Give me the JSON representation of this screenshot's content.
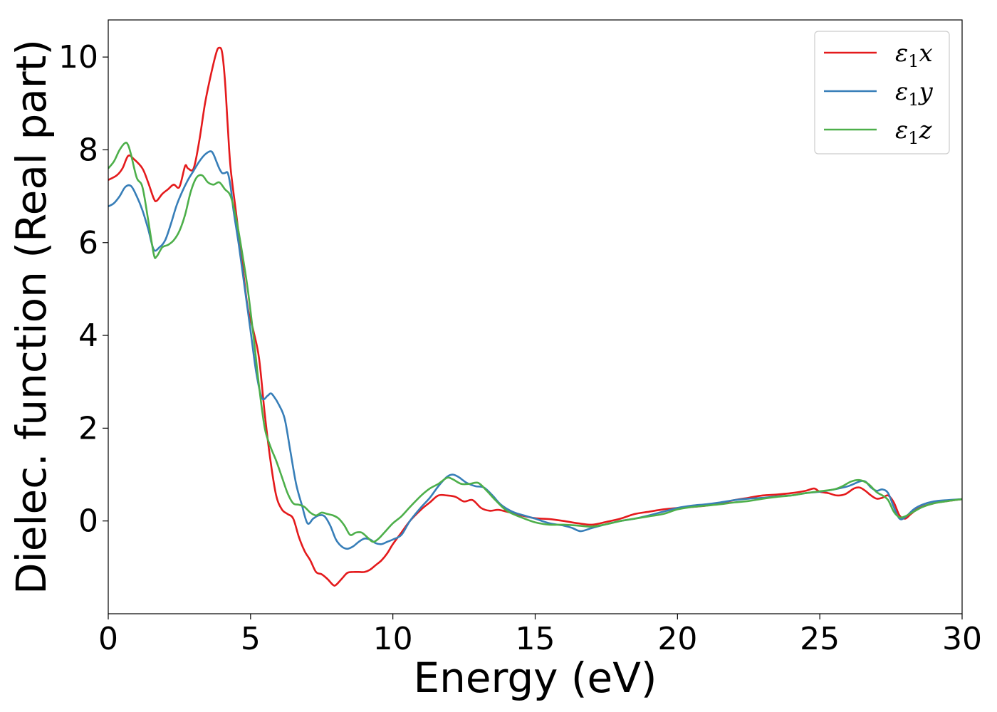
{
  "chart_data": {
    "type": "line",
    "xlabel": "Energy (eV)",
    "ylabel": "Dielec. function (Real part)",
    "xlim": [
      0,
      30
    ],
    "ylim": [
      -2,
      10.8
    ],
    "xticks": [
      0,
      5,
      10,
      15,
      20,
      25,
      30
    ],
    "yticks": [
      0,
      2,
      4,
      6,
      8,
      10
    ],
    "grid": false,
    "legend_position": "top-right",
    "series": [
      {
        "name": "ε₁x",
        "label_base": "ε",
        "label_sub": "1",
        "label_var": "x",
        "color": "#e41a1c",
        "x": [
          0,
          0.3,
          0.5,
          0.7,
          0.9,
          1.2,
          1.4,
          1.6,
          1.7,
          1.9,
          2.1,
          2.3,
          2.5,
          2.7,
          2.8,
          3.0,
          3.2,
          3.4,
          3.6,
          3.8,
          3.9,
          4.0,
          4.1,
          4.2,
          4.3,
          4.5,
          4.7,
          4.9,
          5.1,
          5.3,
          5.5,
          5.7,
          5.9,
          6.1,
          6.3,
          6.5,
          6.7,
          6.9,
          7.1,
          7.3,
          7.5,
          7.7,
          7.9,
          8.0,
          8.2,
          8.4,
          8.6,
          8.8,
          9.0,
          9.2,
          9.4,
          9.6,
          9.8,
          10.0,
          10.3,
          10.6,
          11.0,
          11.3,
          11.6,
          11.9,
          12.2,
          12.5,
          12.8,
          13.1,
          13.4,
          13.7,
          14.0,
          14.5,
          15.0,
          15.5,
          16.0,
          16.5,
          17.0,
          17.5,
          18.0,
          18.5,
          19.0,
          19.5,
          20.0,
          20.5,
          21.0,
          21.5,
          22.0,
          22.5,
          23.0,
          23.5,
          24.0,
          24.5,
          24.8,
          25.0,
          25.3,
          25.6,
          25.9,
          26.2,
          26.4,
          26.6,
          26.8,
          27.0,
          27.2,
          27.4,
          27.6,
          27.8,
          28.0,
          28.2,
          28.5,
          29.0,
          29.5,
          30.0
        ],
        "y": [
          7.35,
          7.45,
          7.6,
          7.87,
          7.8,
          7.6,
          7.3,
          6.95,
          6.9,
          7.05,
          7.15,
          7.25,
          7.2,
          7.65,
          7.6,
          7.6,
          8.2,
          9.0,
          9.6,
          10.1,
          10.2,
          10.1,
          9.5,
          8.5,
          7.6,
          6.6,
          5.6,
          4.6,
          4.1,
          3.5,
          2.3,
          1.3,
          0.55,
          0.25,
          0.15,
          0.05,
          -0.35,
          -0.65,
          -0.85,
          -1.1,
          -1.15,
          -1.25,
          -1.38,
          -1.38,
          -1.25,
          -1.12,
          -1.1,
          -1.1,
          -1.1,
          -1.05,
          -0.95,
          -0.85,
          -0.7,
          -0.5,
          -0.25,
          0.0,
          0.25,
          0.4,
          0.55,
          0.55,
          0.52,
          0.42,
          0.45,
          0.28,
          0.22,
          0.24,
          0.2,
          0.12,
          0.06,
          0.04,
          0.0,
          -0.05,
          -0.08,
          -0.02,
          0.05,
          0.15,
          0.2,
          0.25,
          0.28,
          0.3,
          0.33,
          0.38,
          0.45,
          0.5,
          0.55,
          0.57,
          0.6,
          0.65,
          0.7,
          0.63,
          0.6,
          0.55,
          0.58,
          0.7,
          0.72,
          0.65,
          0.55,
          0.48,
          0.5,
          0.55,
          0.4,
          0.12,
          0.05,
          0.15,
          0.28,
          0.38,
          0.43,
          0.47
        ]
      },
      {
        "name": "ε₁y",
        "label_base": "ε",
        "label_sub": "1",
        "label_var": "y",
        "color": "#377eb8",
        "x": [
          0,
          0.2,
          0.4,
          0.6,
          0.8,
          1.0,
          1.2,
          1.4,
          1.6,
          1.8,
          2.0,
          2.2,
          2.4,
          2.6,
          2.8,
          3.0,
          3.2,
          3.4,
          3.6,
          3.7,
          3.8,
          3.9,
          4.0,
          4.1,
          4.2,
          4.3,
          4.4,
          4.6,
          4.8,
          5.0,
          5.2,
          5.4,
          5.6,
          5.7,
          5.8,
          6.0,
          6.2,
          6.4,
          6.6,
          6.8,
          7.0,
          7.2,
          7.4,
          7.6,
          7.8,
          8.0,
          8.2,
          8.4,
          8.6,
          8.8,
          9.0,
          9.2,
          9.4,
          9.6,
          9.8,
          10.0,
          10.3,
          10.6,
          11.0,
          11.3,
          11.6,
          11.9,
          12.1,
          12.3,
          12.6,
          12.9,
          13.2,
          13.5,
          13.8,
          14.2,
          14.6,
          15.0,
          15.5,
          16.0,
          16.3,
          16.6,
          17.0,
          17.5,
          18.0,
          18.5,
          19.0,
          19.5,
          20.0,
          20.5,
          21.0,
          21.5,
          22.0,
          22.5,
          23.0,
          23.5,
          24.0,
          24.5,
          25.0,
          25.5,
          26.0,
          26.4,
          26.6,
          26.8,
          27.0,
          27.2,
          27.4,
          27.6,
          27.8,
          28.0,
          28.3,
          28.6,
          29.0,
          29.5,
          30.0
        ],
        "y": [
          6.78,
          6.85,
          7.0,
          7.2,
          7.22,
          7.0,
          6.7,
          6.3,
          5.85,
          5.9,
          6.05,
          6.4,
          6.8,
          7.1,
          7.35,
          7.55,
          7.75,
          7.9,
          7.97,
          7.9,
          7.75,
          7.6,
          7.5,
          7.5,
          7.5,
          7.2,
          6.7,
          5.9,
          5.0,
          4.1,
          3.2,
          2.65,
          2.7,
          2.75,
          2.7,
          2.5,
          2.2,
          1.5,
          0.8,
          0.35,
          -0.05,
          0.05,
          0.12,
          0.1,
          -0.1,
          -0.4,
          -0.55,
          -0.6,
          -0.55,
          -0.45,
          -0.38,
          -0.4,
          -0.48,
          -0.5,
          -0.45,
          -0.4,
          -0.3,
          0.0,
          0.3,
          0.5,
          0.75,
          0.95,
          1.0,
          0.95,
          0.82,
          0.75,
          0.72,
          0.55,
          0.35,
          0.2,
          0.12,
          0.05,
          -0.05,
          -0.1,
          -0.15,
          -0.22,
          -0.15,
          -0.07,
          0.0,
          0.05,
          0.12,
          0.2,
          0.28,
          0.33,
          0.36,
          0.4,
          0.45,
          0.48,
          0.5,
          0.53,
          0.55,
          0.6,
          0.63,
          0.68,
          0.75,
          0.85,
          0.85,
          0.72,
          0.65,
          0.68,
          0.6,
          0.3,
          0.05,
          0.08,
          0.25,
          0.35,
          0.42,
          0.45,
          0.47
        ]
      },
      {
        "name": "ε₁z",
        "label_base": "ε",
        "label_sub": "1",
        "label_var": "z",
        "color": "#4daf4a",
        "x": [
          0,
          0.2,
          0.4,
          0.6,
          0.7,
          0.8,
          1.0,
          1.2,
          1.4,
          1.6,
          1.7,
          1.9,
          2.1,
          2.3,
          2.5,
          2.7,
          2.9,
          3.1,
          3.3,
          3.5,
          3.7,
          3.9,
          4.1,
          4.3,
          4.5,
          4.7,
          4.9,
          5.1,
          5.3,
          5.5,
          5.7,
          5.9,
          6.1,
          6.3,
          6.5,
          6.7,
          6.9,
          7.1,
          7.3,
          7.5,
          7.7,
          7.9,
          8.1,
          8.3,
          8.5,
          8.7,
          8.9,
          9.1,
          9.3,
          9.5,
          9.7,
          10.0,
          10.3,
          10.6,
          11.0,
          11.3,
          11.6,
          11.9,
          12.1,
          12.4,
          12.7,
          13.0,
          13.3,
          13.6,
          14.0,
          14.5,
          15.0,
          15.5,
          16.0,
          16.5,
          17.0,
          17.5,
          18.0,
          18.5,
          19.0,
          19.5,
          20.0,
          20.5,
          21.0,
          21.5,
          22.0,
          22.5,
          23.0,
          23.5,
          24.0,
          24.5,
          25.0,
          25.5,
          25.8,
          26.1,
          26.4,
          26.7,
          27.0,
          27.2,
          27.4,
          27.6,
          27.8,
          28.0,
          28.3,
          28.6,
          29.0,
          29.5,
          30.0
        ],
        "y": [
          7.6,
          7.75,
          8.0,
          8.15,
          8.1,
          7.9,
          7.4,
          7.2,
          6.5,
          5.75,
          5.7,
          5.9,
          5.95,
          6.05,
          6.25,
          6.6,
          7.1,
          7.4,
          7.45,
          7.3,
          7.25,
          7.3,
          7.15,
          7.0,
          6.5,
          5.8,
          5.0,
          4.0,
          2.9,
          2.0,
          1.6,
          1.3,
          0.95,
          0.6,
          0.38,
          0.35,
          0.3,
          0.18,
          0.12,
          0.18,
          0.15,
          0.12,
          0.05,
          -0.1,
          -0.3,
          -0.25,
          -0.25,
          -0.35,
          -0.45,
          -0.38,
          -0.25,
          -0.05,
          0.1,
          0.3,
          0.55,
          0.7,
          0.8,
          0.93,
          0.9,
          0.8,
          0.8,
          0.82,
          0.65,
          0.45,
          0.22,
          0.08,
          -0.03,
          -0.08,
          -0.08,
          -0.1,
          -0.12,
          -0.07,
          0.0,
          0.05,
          0.1,
          0.15,
          0.25,
          0.3,
          0.33,
          0.36,
          0.4,
          0.43,
          0.48,
          0.52,
          0.55,
          0.6,
          0.64,
          0.68,
          0.75,
          0.85,
          0.88,
          0.8,
          0.62,
          0.55,
          0.45,
          0.2,
          0.08,
          0.1,
          0.2,
          0.3,
          0.38,
          0.43,
          0.47
        ]
      }
    ]
  }
}
